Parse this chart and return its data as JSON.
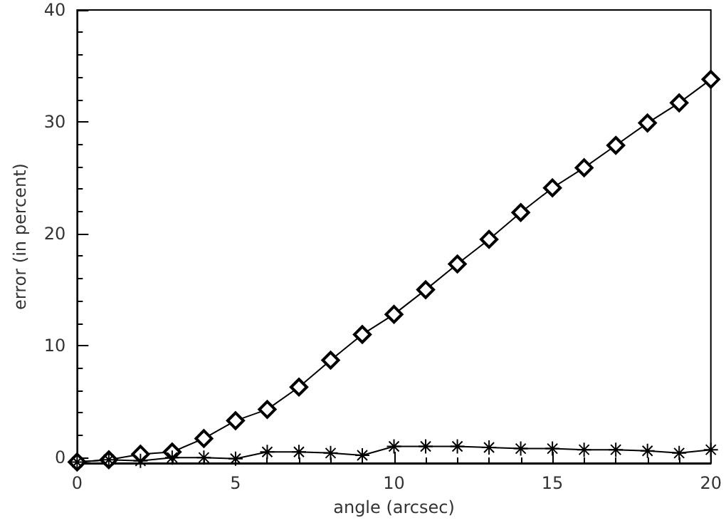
{
  "chart_data": {
    "type": "line",
    "xlabel": "angle (arcsec)",
    "ylabel": "error (in percent)",
    "x": [
      0,
      1,
      2,
      3,
      4,
      5,
      6,
      7,
      8,
      9,
      10,
      11,
      12,
      13,
      14,
      15,
      16,
      17,
      18,
      19,
      20
    ],
    "series": [
      {
        "color": "#000000",
        "marker": "diamond",
        "values": [
          -0.4,
          -0.2,
          0.3,
          0.5,
          1.7,
          3.3,
          4.3,
          6.3,
          8.7,
          11,
          12.8,
          15,
          17.3,
          19.5,
          21.9,
          24.1,
          25.9,
          27.9,
          29.9,
          31.7,
          33.8
        ]
      },
      {
        "color": "#000000",
        "marker": "cross",
        "values": [
          -0.4,
          -0.2,
          -0.3,
          0,
          0,
          -0.1,
          0.5,
          0.5,
          0.4,
          0.2,
          1.0,
          1.0,
          1.0,
          0.9,
          0.8,
          0.8,
          0.7,
          0.7,
          0.6,
          0.4,
          0.7
        ]
      }
    ],
    "xlim": [
      0,
      20
    ],
    "xticks": [
      0,
      5,
      10,
      15,
      20
    ],
    "ylim": [
      -0.5,
      40
    ],
    "yticks": [
      0,
      10,
      20,
      30,
      40
    ],
    "grid": false,
    "line_style": "solid"
  }
}
